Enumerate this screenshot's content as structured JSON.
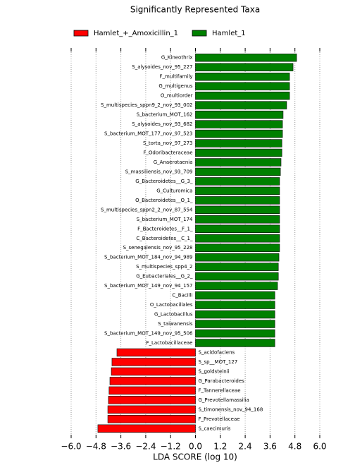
{
  "chart_data": {
    "type": "bar",
    "orientation": "horizontal",
    "title": "Significantly Represented Taxa",
    "xlabel": "LDA SCORE (log 10)",
    "xlim": [
      -6,
      6
    ],
    "xticks": [
      {
        "value": -6,
        "label": "−6.0"
      },
      {
        "value": -4.8,
        "label": "−4.8"
      },
      {
        "value": -3.6,
        "label": "−3.6"
      },
      {
        "value": -2.4,
        "label": "−2.4"
      },
      {
        "value": -1.2,
        "label": "−1.2"
      },
      {
        "value": 0,
        "label": "0.0"
      },
      {
        "value": 1.2,
        "label": "1.2"
      },
      {
        "value": 2.4,
        "label": "2.4"
      },
      {
        "value": 3.6,
        "label": "3.6"
      },
      {
        "value": 4.8,
        "label": "4.8"
      },
      {
        "value": 6,
        "label": "6.0"
      }
    ],
    "grid": true,
    "legend": "top",
    "series": [
      {
        "name": "Hamlet_+_Amoxicillin_1",
        "color": "#ff0000",
        "categories": [
          "S_acidofaciens",
          "S_sp__MOT_127",
          "S_goldsteinii",
          "G_Parabacteroides",
          "F_Tannerellaceae",
          "G_Prevotellamassilia",
          "S_timonensis_nov_94_168",
          "F_Prevotellaceae",
          "S_caecimuris"
        ],
        "values": [
          -3.79,
          -4.03,
          -4.06,
          -4.13,
          -4.17,
          -4.2,
          -4.23,
          -4.23,
          -4.71
        ]
      },
      {
        "name": "Hamlet_1",
        "color": "#008000",
        "categories": [
          "G_Kineothrix",
          "S_alysoides_nov_95_227",
          "F_multifamily",
          "G_multigenus",
          "O_multiorder",
          "S_multispecies_sppn9_2_nov_93_002",
          "S_bacterium_MOT_162",
          "S_alysoides_nov_93_682",
          "S_bacterium_MOT_177_nov_97_523",
          "S_torta_nov_97_273",
          "F_Odoribacteraceae",
          "G_Anaerotaenia",
          "S_massiliensis_nov_93_709",
          "G_Bacteroidetes__G_3_",
          "G_Culturomica",
          "O_Bacteroidetes__O_1_",
          "S_multispecies_sppn2_2_nov_87_554",
          "S_bacterium_MOT_174",
          "F_Bacteroidetes__F_1_",
          "C_Bacteroidetes__C_1_",
          "S_senegalensis_nov_95_228",
          "S_bacterium_MOT_184_nov_94_989",
          "S_multispecies_spp4_2",
          "G_Eubacteriales__G_2_",
          "S_bacterium_MOT_149_nov_94_157",
          "C_Bacilli",
          "O_Lactobacillales",
          "G_Lactobacillus",
          "S_taiwanensis",
          "S_bacterium_MOT_149_nov_95_506",
          "F_Lactobacillaceae"
        ],
        "values": [
          4.88,
          4.71,
          4.54,
          4.54,
          4.54,
          4.4,
          4.23,
          4.2,
          4.2,
          4.17,
          4.17,
          4.13,
          4.1,
          4.06,
          4.06,
          4.06,
          4.06,
          4.06,
          4.06,
          4.06,
          4.06,
          4.03,
          4.0,
          4.0,
          3.96,
          3.83,
          3.83,
          3.83,
          3.83,
          3.83,
          3.83
        ]
      }
    ]
  }
}
